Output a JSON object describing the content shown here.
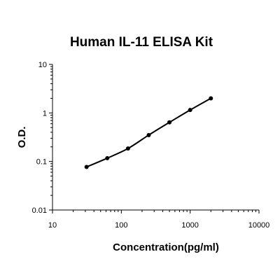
{
  "chart_data": {
    "type": "scatter",
    "title": "Human IL-11 ELISA Kit",
    "xlabel": "Concentration(pg/ml)",
    "ylabel": "O.D.",
    "xscale": "log",
    "yscale": "log",
    "xlim": [
      10,
      10000
    ],
    "ylim": [
      0.01,
      10
    ],
    "x_ticks": [
      "10",
      "100",
      "1000",
      "10000"
    ],
    "y_ticks": [
      "0.01",
      "0.1",
      "1",
      "10"
    ],
    "grid": false,
    "legend": "none",
    "has_fit_curve": true,
    "series": [
      {
        "x": [
          31.25,
          62.5,
          125,
          250,
          500,
          1000,
          2000
        ],
        "y": [
          0.077,
          0.117,
          0.185,
          0.35,
          0.64,
          1.15,
          2.0
        ]
      }
    ],
    "colors": {
      "marker": "#000000",
      "line": "#000000"
    }
  }
}
